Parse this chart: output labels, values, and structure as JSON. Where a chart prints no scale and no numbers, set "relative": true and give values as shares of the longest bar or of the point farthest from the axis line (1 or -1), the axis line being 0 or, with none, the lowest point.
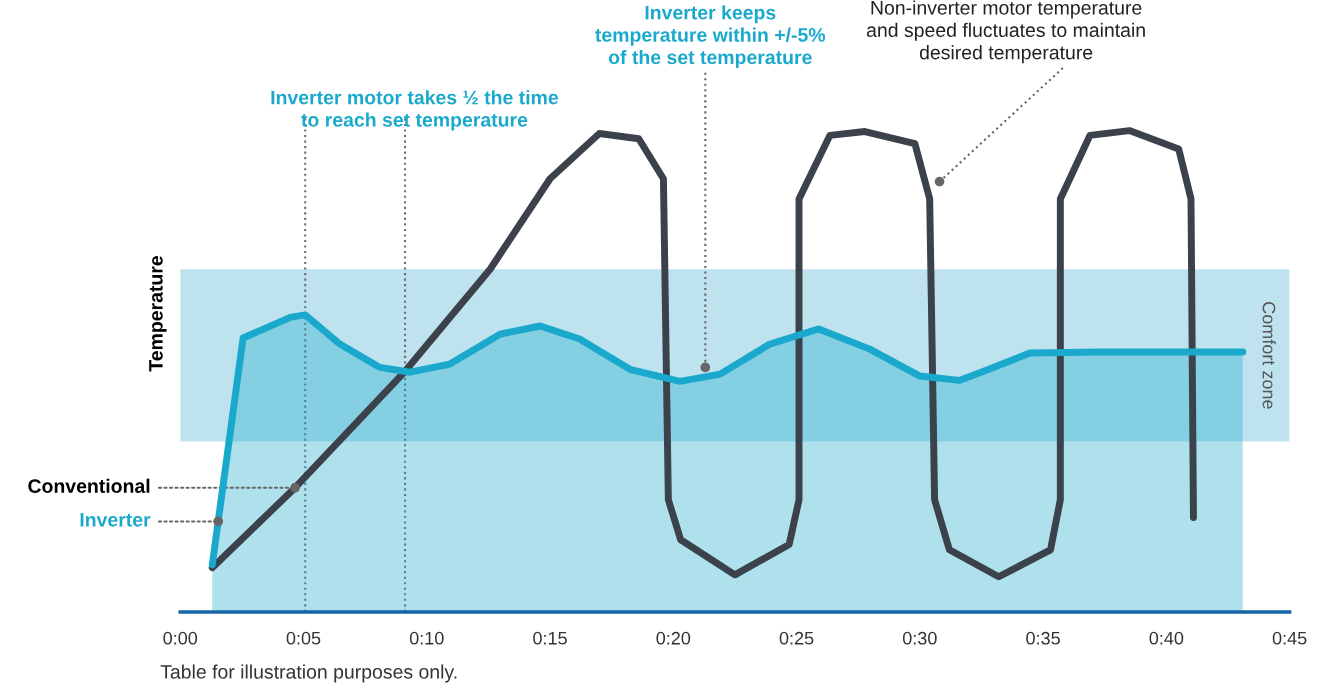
{
  "chart_data": {
    "type": "line",
    "relative": true,
    "ylabel": "Temperature",
    "xlim": [
      0,
      45
    ],
    "xticks": [
      {
        "value": 0,
        "label": "0:00"
      },
      {
        "value": 5,
        "label": "0:05"
      },
      {
        "value": 10,
        "label": "0:10"
      },
      {
        "value": 15,
        "label": "0:15"
      },
      {
        "value": 20,
        "label": "0:20"
      },
      {
        "value": 25,
        "label": "0:25"
      },
      {
        "value": 30,
        "label": "0:30"
      },
      {
        "value": 35,
        "label": "0:35"
      },
      {
        "value": 40,
        "label": "0:40"
      },
      {
        "value": 45,
        "label": "0:45"
      }
    ],
    "series": [
      {
        "name": "Conventional",
        "type": "line",
        "color": "#3c424b",
        "x": [
          1.3,
          4.66,
          9.12,
          12.57,
          15.0,
          17.0,
          18.6,
          19.6,
          19.8,
          20.3,
          22.5,
          24.7,
          25.1,
          25.1,
          26.35,
          27.77,
          29.8,
          30.4,
          30.6,
          31.2,
          33.2,
          35.3,
          35.7,
          35.7,
          36.9,
          38.5,
          40.5,
          41.0,
          41.1
        ],
        "values": [
          0.092,
          0.258,
          0.5,
          0.712,
          0.9,
          0.994,
          0.983,
          0.9,
          0.233,
          0.15,
          0.077,
          0.14,
          0.233,
          0.858,
          0.99,
          0.998,
          0.973,
          0.858,
          0.233,
          0.129,
          0.073,
          0.129,
          0.233,
          0.858,
          0.99,
          1.0,
          0.962,
          0.858,
          0.196
        ]
      },
      {
        "name": "Inverter",
        "type": "area",
        "color": "#1aa9cc",
        "x": [
          1.3,
          1.54,
          2.55,
          4.46,
          5.07,
          6.49,
          8.1,
          9.32,
          10.94,
          12.97,
          14.6,
          16.2,
          18.24,
          20.27,
          21.9,
          23.9,
          25.9,
          27.97,
          30.0,
          31.6,
          32.8,
          34.46,
          37.3,
          43.1
        ],
        "values": [
          0.098,
          0.188,
          0.569,
          0.612,
          0.617,
          0.556,
          0.508,
          0.498,
          0.515,
          0.577,
          0.594,
          0.567,
          0.504,
          0.479,
          0.494,
          0.556,
          0.588,
          0.546,
          0.49,
          0.481,
          0.504,
          0.538,
          0.54,
          0.54
        ]
      }
    ],
    "bands": [
      {
        "axis": "y",
        "from": 0.354,
        "to": 0.712,
        "label": "Comfort zone",
        "color": "#bfe3ee"
      }
    ],
    "ref_lines": [
      {
        "axis": "x",
        "value": 5.07,
        "line_style": "dotted",
        "color": "#6b6e72"
      },
      {
        "axis": "x",
        "value": 9.12,
        "line_style": "dotted",
        "color": "#6b6e72"
      }
    ],
    "annotations": [
      "Inverter motor takes ½ the time\nto reach set temperature",
      {
        "text": "Inverter keeps\ntemperature within +/-5%\nof the set temperature",
        "x": 21.3,
        "y": 0.508
      },
      {
        "text": "Non-inverter motor temperature\nand speed fluctuates to maintain\ndesired temperature",
        "x": 30.8,
        "y": 0.894
      },
      "Table for illustration purposes only."
    ],
    "legend": "left"
  }
}
